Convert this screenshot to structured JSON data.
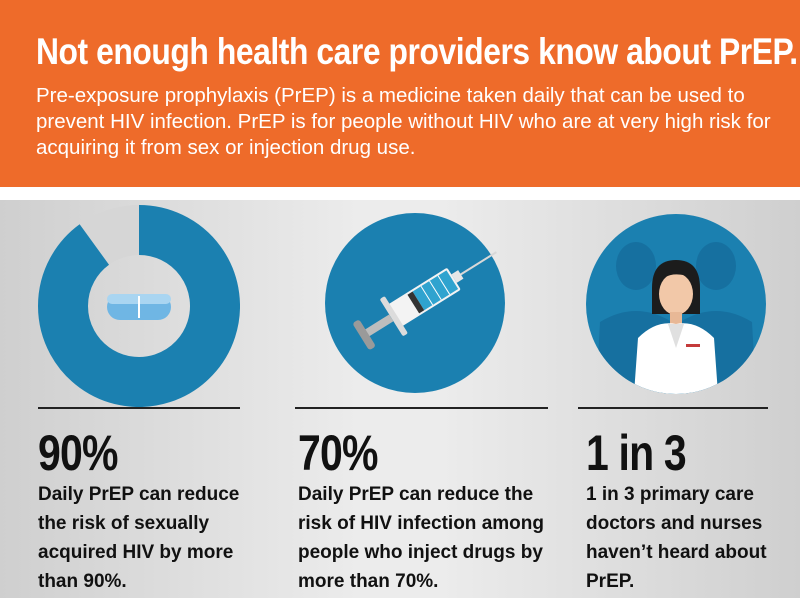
{
  "header": {
    "title": "Not enough health care providers know about PrEP.",
    "intro": "Pre-exposure prophylaxis (PrEP) is a medicine taken daily that can be used to prevent HIV infection. PrEP is for people without HIV who are at very high risk for acquiring it from sex or injection drug use."
  },
  "colors": {
    "header_orange": "#ee6b2a",
    "icon_blue": "#1b80b0",
    "ring_gray": "#d6d6d6",
    "text_dark": "#111111"
  },
  "panels": [
    {
      "icon": "pill-donut-icon",
      "stat": "90%",
      "description": "Daily PrEP can reduce the risk of sexually acquired HIV by more than 90%.",
      "ring_fraction": 0.9
    },
    {
      "icon": "syringe-icon",
      "stat": "70%",
      "description": "Daily PrEP can reduce the risk of HIV infection among people who inject drugs by more than 70%."
    },
    {
      "icon": "health-care-providers-icon",
      "stat": "1 in 3",
      "description": "1 in 3 primary care doctors and nurses haven’t heard about PrEP."
    }
  ]
}
